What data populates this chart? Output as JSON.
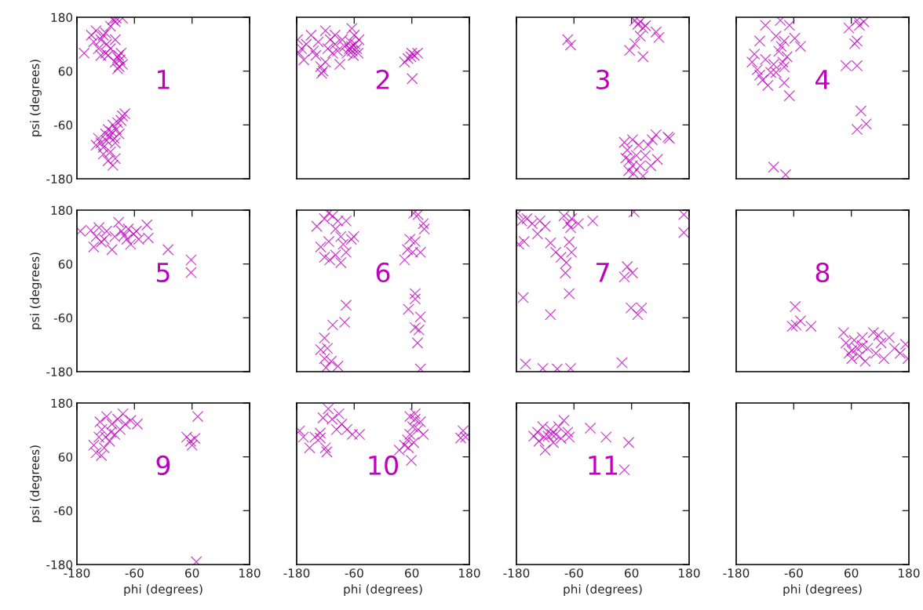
{
  "chart_data": [
    {
      "type": "scatter",
      "ylabel": "psi (degrees)",
      "annotations": [
        "1"
      ],
      "marker": "cross",
      "color": "#bf00bf",
      "xlim": [
        -180,
        180
      ],
      "ylim": [
        -180,
        180
      ],
      "xticks": [
        -180,
        -60,
        60,
        180
      ],
      "yticks": [
        -180,
        -60,
        60,
        180
      ],
      "tick_labels": "y",
      "x": [
        -165,
        -150,
        -145,
        -140,
        -135,
        -130,
        -125,
        -120,
        -118,
        -115,
        -110,
        -105,
        -100,
        -110,
        -100,
        -95,
        -93,
        -90,
        -92,
        -88,
        -85,
        -95,
        -100,
        -120,
        -130,
        -98,
        -85,
        -135,
        -130,
        -125,
        -120,
        -118,
        -115,
        -112,
        -110,
        -108,
        -105,
        -102,
        -100,
        -98,
        -95,
        -92,
        -88,
        -85,
        -80,
        -115,
        -105,
        -100,
        -125,
        -140
      ],
      "values": [
        100,
        140,
        125,
        150,
        110,
        130,
        140,
        145,
        120,
        95,
        160,
        175,
        170,
        110,
        130,
        90,
        95,
        85,
        70,
        100,
        75,
        65,
        80,
        100,
        95,
        178,
        178,
        -90,
        -100,
        -110,
        -80,
        -95,
        -70,
        -85,
        -120,
        -75,
        -60,
        -90,
        -100,
        -70,
        -55,
        -80,
        -50,
        -40,
        -35,
        -140,
        -150,
        -135,
        -125,
        -105
      ]
    },
    {
      "type": "scatter",
      "annotations": [
        "2"
      ],
      "marker": "cross",
      "color": "#bf00bf",
      "xlim": [
        -180,
        180
      ],
      "ylim": [
        -180,
        180
      ],
      "xticks": [
        -180,
        -60,
        60,
        180
      ],
      "yticks": [
        -180,
        -60,
        60,
        180
      ],
      "tick_labels": false,
      "x": [
        -178,
        -175,
        -170,
        -165,
        -160,
        -150,
        -145,
        -140,
        -135,
        -130,
        -128,
        -125,
        -120,
        -115,
        -110,
        -105,
        -100,
        -95,
        -90,
        -85,
        -80,
        -75,
        -70,
        -68,
        -66,
        -64,
        -62,
        -60,
        -58,
        -55,
        -52,
        -50,
        -65,
        -100,
        -120,
        45,
        52,
        58,
        60,
        65,
        72,
        61
      ],
      "values": [
        130,
        100,
        110,
        85,
        120,
        140,
        105,
        95,
        125,
        70,
        55,
        60,
        80,
        110,
        130,
        100,
        120,
        105,
        75,
        130,
        115,
        100,
        110,
        125,
        115,
        105,
        95,
        140,
        120,
        110,
        100,
        130,
        155,
        140,
        150,
        80,
        88,
        92,
        100,
        95,
        100,
        43
      ]
    },
    {
      "type": "scatter",
      "annotations": [
        "3"
      ],
      "marker": "cross",
      "color": "#bf00bf",
      "xlim": [
        -180,
        180
      ],
      "ylim": [
        -180,
        180
      ],
      "xticks": [
        -180,
        -60,
        60,
        180
      ],
      "yticks": [
        -180,
        -60,
        60,
        180
      ],
      "tick_labels": false,
      "x": [
        -73,
        -67,
        67,
        73,
        78,
        84,
        89,
        111,
        117,
        67,
        56,
        84,
        78,
        45,
        51,
        56,
        62,
        64,
        70,
        75,
        78,
        84,
        89,
        95,
        103,
        111,
        114,
        100,
        136,
        139,
        54,
        62,
        48
      ],
      "values": [
        130,
        118,
        173,
        164,
        170,
        156,
        161,
        147,
        135,
        121,
        106,
        92,
        138,
        -99,
        -116,
        -139,
        -151,
        -168,
        -128,
        -105,
        -151,
        -174,
        -128,
        -105,
        -93,
        -82,
        -137,
        -151,
        -87,
        -90,
        -162,
        -93,
        -134
      ]
    },
    {
      "type": "scatter",
      "annotations": [
        "4"
      ],
      "marker": "cross",
      "color": "#bf00bf",
      "xlim": [
        -180,
        180
      ],
      "ylim": [
        -180,
        180
      ],
      "xticks": [
        -180,
        -60,
        60,
        180
      ],
      "yticks": [
        -180,
        -60,
        60,
        180
      ],
      "tick_labels": false,
      "x": [
        -147,
        -142,
        -136,
        -131,
        -125,
        -114,
        -108,
        -119,
        -131,
        -119,
        -97,
        -91,
        -86,
        -80,
        -74,
        -88,
        -69,
        -58,
        -46,
        -80,
        -80,
        -69,
        -102,
        -97,
        -83,
        72,
        77,
        86,
        55,
        67,
        72,
        49,
        72,
        80,
        91,
        72,
        -102,
        -77
      ],
      "values": [
        80,
        98,
        63,
        51,
        40,
        28,
        57,
        86,
        127,
        162,
        138,
        104,
        115,
        127,
        92,
        173,
        162,
        133,
        115,
        69,
        34,
        5,
        75,
        57,
        80,
        173,
        162,
        170,
        156,
        121,
        127,
        72,
        72,
        -29,
        -58,
        -70,
        -154,
        -171
      ]
    },
    {
      "type": "scatter",
      "ylabel": "psi (degrees)",
      "annotations": [
        "5"
      ],
      "marker": "cross",
      "color": "#bf00bf",
      "xlim": [
        -180,
        180
      ],
      "ylim": [
        -180,
        180
      ],
      "xticks": [
        -180,
        -60,
        60,
        180
      ],
      "yticks": [
        -180,
        -60,
        60,
        180
      ],
      "tick_labels": "y",
      "x": [
        -173,
        -151,
        -145,
        -140,
        -129,
        -118,
        -107,
        -101,
        -93,
        -87,
        -81,
        -76,
        -73,
        -68,
        -62,
        -51,
        -34,
        -31,
        -56,
        -123,
        -134,
        10,
        58,
        58
      ],
      "values": [
        133,
        135,
        98,
        121,
        109,
        133,
        92,
        121,
        153,
        133,
        124,
        115,
        138,
        104,
        127,
        115,
        147,
        118,
        133,
        115,
        141,
        92,
        69,
        41
      ]
    },
    {
      "type": "scatter",
      "annotations": [
        "6"
      ],
      "marker": "cross",
      "color": "#bf00bf",
      "xlim": [
        -180,
        180
      ],
      "ylim": [
        -180,
        180
      ],
      "xticks": [
        -180,
        -60,
        60,
        180
      ],
      "yticks": [
        -180,
        -60,
        60,
        180
      ],
      "tick_labels": false,
      "x": [
        -138,
        -130,
        -122,
        -113,
        -105,
        -99,
        -94,
        -88,
        -83,
        -77,
        -66,
        -61,
        -99,
        -111,
        -122,
        -88,
        -77,
        -113,
        -77,
        -80,
        -105,
        -122,
        -130,
        -116,
        -108,
        -122,
        -94,
        -119,
        64,
        73,
        84,
        86,
        56,
        67,
        51,
        62,
        45,
        78,
        67,
        67,
        53,
        78,
        67,
        75,
        72,
        78
      ],
      "values": [
        144,
        98,
        161,
        173,
        167,
        138,
        156,
        121,
        104,
        86,
        115,
        121,
        80,
        69,
        75,
        63,
        156,
        110,
        -32,
        -70,
        -76,
        -105,
        -131,
        -128,
        -157,
        -151,
        -168,
        -171,
        173,
        170,
        150,
        138,
        115,
        110,
        92,
        86,
        69,
        86,
        -6,
        -18,
        -41,
        -58,
        -82,
        -87,
        -116,
        -174
      ]
    },
    {
      "type": "scatter",
      "annotations": [
        "7"
      ],
      "marker": "cross",
      "color": "#bf00bf",
      "xlim": [
        -180,
        180
      ],
      "ylim": [
        -180,
        180
      ],
      "xticks": [
        -180,
        -60,
        60,
        180
      ],
      "yticks": [
        -180,
        -60,
        60,
        180
      ],
      "tick_labels": false,
      "x": [
        -177,
        -169,
        -158,
        -175,
        -164,
        -147,
        -136,
        -131,
        -120,
        -109,
        -98,
        -87,
        -76,
        -70,
        -78,
        -65,
        -73,
        -81,
        -65,
        -67,
        -51,
        -21,
        65,
        169,
        169,
        -70,
        -166,
        -109,
        51,
        62,
        45,
        59,
        73,
        81,
        -161,
        -125,
        -95,
        -67,
        40
      ],
      "values": [
        173,
        156,
        161,
        104,
        110,
        150,
        127,
        156,
        144,
        107,
        86,
        75,
        63,
        109,
        40,
        86,
        150,
        167,
        161,
        141,
        150,
        156,
        176,
        170,
        130,
        -6,
        -15,
        -53,
        54,
        40,
        31,
        -38,
        -53,
        -38,
        -163,
        -173,
        -174,
        -173,
        -160
      ]
    },
    {
      "type": "scatter",
      "annotations": [
        "8"
      ],
      "marker": "cross",
      "color": "#bf00bf",
      "xlim": [
        -180,
        180
      ],
      "ylim": [
        -180,
        180
      ],
      "xticks": [
        -180,
        -60,
        60,
        180
      ],
      "yticks": [
        -180,
        -60,
        60,
        180
      ],
      "tick_labels": false,
      "x": [
        -57,
        -46,
        -63,
        -24,
        -55,
        44,
        49,
        55,
        61,
        66,
        72,
        77,
        83,
        94,
        106,
        111,
        122,
        128,
        139,
        150,
        162,
        173,
        178,
        117,
        89,
        61,
        83
      ],
      "values": [
        -35,
        -67,
        -79,
        -79,
        -76,
        -93,
        -116,
        -139,
        -151,
        -110,
        -128,
        -145,
        -104,
        -128,
        -93,
        -139,
        -116,
        -151,
        -104,
        -128,
        -139,
        -119,
        -151,
        -99,
        -157,
        -133,
        -122
      ]
    },
    {
      "type": "scatter",
      "xlabel": "phi (degrees)",
      "ylabel": "psi (degrees)",
      "annotations": [
        "9"
      ],
      "marker": "cross",
      "color": "#bf00bf",
      "xlim": [
        -180,
        180
      ],
      "ylim": [
        -180,
        180
      ],
      "xticks": [
        -180,
        -60,
        60,
        180
      ],
      "yticks": [
        -180,
        -60,
        60,
        180
      ],
      "x": [
        -145,
        -140,
        -134,
        -128,
        -123,
        -118,
        -112,
        -107,
        -101,
        -95,
        -90,
        -84,
        -79,
        -68,
        -54,
        -129,
        -120,
        -109,
        -132,
        49,
        57,
        66,
        60,
        72,
        69
      ],
      "values": [
        86,
        69,
        104,
        121,
        80,
        150,
        95,
        133,
        110,
        144,
        121,
        156,
        133,
        141,
        133,
        63,
        104,
        115,
        138,
        104,
        95,
        101,
        86,
        150,
        -174
      ]
    },
    {
      "type": "scatter",
      "xlabel": "phi (degrees)",
      "annotations": [
        "10"
      ],
      "marker": "cross",
      "color": "#bf00bf",
      "xlim": [
        -180,
        180
      ],
      "ylim": [
        -180,
        180
      ],
      "xticks": [
        -180,
        -60,
        60,
        180
      ],
      "yticks": [
        -180,
        -60,
        60,
        180
      ],
      "tick_labels": "x",
      "x": [
        -174,
        -166,
        -153,
        -142,
        -131,
        -125,
        -120,
        -114,
        -106,
        -97,
        -92,
        -86,
        -75,
        -64,
        -49,
        -131,
        -117,
        34,
        45,
        51,
        56,
        62,
        67,
        73,
        78,
        67,
        84,
        56,
        53,
        59,
        64,
        167,
        172,
        162
      ],
      "values": [
        118,
        104,
        80,
        104,
        113,
        147,
        80,
        167,
        144,
        121,
        156,
        133,
        121,
        110,
        110,
        102,
        71,
        75,
        86,
        98,
        110,
        127,
        144,
        121,
        138,
        156,
        110,
        150,
        80,
        52,
        92,
        118,
        104,
        102
      ]
    },
    {
      "type": "scatter",
      "xlabel": "phi (degrees)",
      "annotations": [
        "11"
      ],
      "marker": "cross",
      "color": "#bf00bf",
      "xlim": [
        -180,
        180
      ],
      "ylim": [
        -180,
        180
      ],
      "xticks": [
        -180,
        -60,
        60,
        180
      ],
      "yticks": [
        -180,
        -60,
        60,
        180
      ],
      "tick_labels": "x",
      "x": [
        -144,
        -136,
        -133,
        -125,
        -120,
        -114,
        -109,
        -103,
        -98,
        -92,
        -87,
        -81,
        -73,
        -70,
        -122,
        -106,
        -26,
        7,
        54,
        45
      ],
      "values": [
        106,
        115,
        95,
        127,
        75,
        106,
        121,
        92,
        110,
        127,
        101,
        141,
        115,
        104,
        104,
        110,
        124,
        104,
        92,
        31
      ]
    },
    {
      "type": "scatter",
      "xlabel": "phi (degrees)",
      "xlim": [
        -180,
        180
      ],
      "ylim": [
        -180,
        180
      ],
      "xticks": [
        -180,
        -60,
        60,
        180
      ],
      "yticks": [
        -180,
        -60,
        60,
        180
      ],
      "tick_labels": "x"
    }
  ]
}
